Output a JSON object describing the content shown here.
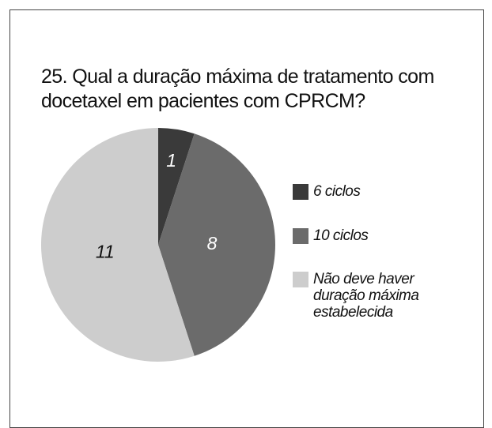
{
  "chart_data": {
    "type": "pie",
    "title": "25. Qual a duração máxima de tratamento com docetaxel em pacientes com CPRCM?",
    "categories": [
      "6 ciclos",
      "10 ciclos",
      "Não deve haver duração máxima estabelecida"
    ],
    "values": [
      1,
      8,
      11
    ],
    "colors": [
      "#3a3a3a",
      "#6b6b6b",
      "#cdcdcd"
    ],
    "legend": "right"
  }
}
